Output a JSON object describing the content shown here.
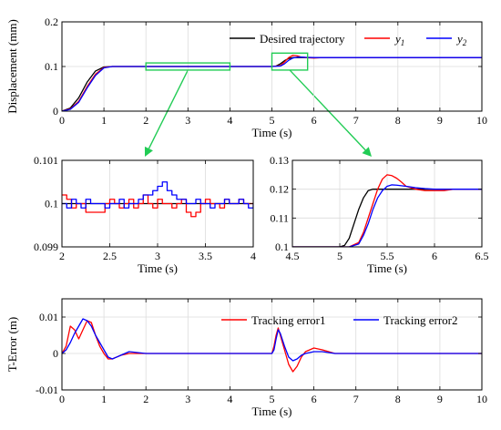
{
  "colors": {
    "desired": "#000000",
    "y1": "#ff0000",
    "y2": "#0000ff",
    "zoom": "#22cc55"
  },
  "chart_data": [
    {
      "id": "displacement",
      "type": "line",
      "ylabel": "Displacement (mm)",
      "xlabel": "Time (s)",
      "xlim": [
        0,
        10
      ],
      "ylim": [
        0,
        0.2
      ],
      "xticks": [
        0,
        1,
        2,
        3,
        4,
        5,
        6,
        7,
        8,
        9,
        10
      ],
      "xtick_labels": [
        "0",
        "1",
        "2",
        "3",
        "4",
        "5",
        "6",
        "7",
        "8",
        "9",
        "10"
      ],
      "yticks": [
        0,
        0.1,
        0.2
      ],
      "ytick_labels": [
        "0",
        "0.1",
        "0.2"
      ],
      "grid": true,
      "legend": "top-right",
      "series": [
        {
          "name": "Desired trajectory",
          "x": [
            0,
            0.2,
            0.4,
            0.6,
            0.8,
            1.0,
            1.2,
            2,
            3,
            4,
            5,
            5.1,
            5.2,
            5.3,
            5.4,
            5.5,
            5.6,
            5.8,
            6,
            7,
            8,
            9,
            10
          ],
          "y": [
            0,
            0.007,
            0.03,
            0.065,
            0.09,
            0.099,
            0.1,
            0.1,
            0.1,
            0.1,
            0.1,
            0.101,
            0.106,
            0.113,
            0.118,
            0.12,
            0.12,
            0.12,
            0.12,
            0.12,
            0.12,
            0.12,
            0.12
          ]
        },
        {
          "name": "y1",
          "legend_main": "y",
          "legend_sub": "1",
          "x": [
            0,
            0.2,
            0.4,
            0.6,
            0.8,
            1.0,
            1.2,
            2,
            3,
            4,
            5,
            5.2,
            5.3,
            5.4,
            5.5,
            5.6,
            5.7,
            5.8,
            6,
            6.2,
            6.5,
            7,
            8,
            9,
            10
          ],
          "y": [
            0,
            0.005,
            0.022,
            0.055,
            0.083,
            0.098,
            0.1,
            0.1,
            0.1,
            0.1,
            0.1,
            0.102,
            0.11,
            0.12,
            0.125,
            0.124,
            0.121,
            0.12,
            0.119,
            0.12,
            0.12,
            0.12,
            0.12,
            0.12,
            0.12
          ]
        },
        {
          "name": "y2",
          "legend_main": "y",
          "legend_sub": "2",
          "x": [
            0,
            0.2,
            0.4,
            0.6,
            0.8,
            1.0,
            1.2,
            2,
            3,
            4,
            5,
            5.2,
            5.3,
            5.4,
            5.5,
            5.6,
            5.7,
            5.8,
            6,
            6.5,
            7,
            8,
            9,
            10
          ],
          "y": [
            0,
            0.004,
            0.02,
            0.052,
            0.08,
            0.097,
            0.1,
            0.1,
            0.1,
            0.1,
            0.1,
            0.101,
            0.106,
            0.114,
            0.119,
            0.121,
            0.121,
            0.1205,
            0.12,
            0.12,
            0.12,
            0.12,
            0.12,
            0.12
          ]
        }
      ],
      "zoom_regions": [
        {
          "xlim": [
            2,
            4
          ],
          "ylim": [
            0.092,
            0.108
          ]
        },
        {
          "xlim": [
            5,
            5.85
          ],
          "ylim": [
            0.092,
            0.13
          ]
        }
      ]
    },
    {
      "id": "zoom-left",
      "type": "line",
      "xlabel": "Time (s)",
      "xlim": [
        2,
        4
      ],
      "ylim": [
        0.099,
        0.101
      ],
      "xticks": [
        2,
        2.5,
        3,
        3.5,
        4
      ],
      "xtick_labels": [
        "2",
        "2.5",
        "3",
        "3.5",
        "4"
      ],
      "yticks": [
        0.099,
        0.1,
        0.101
      ],
      "ytick_labels": [
        "0.099",
        "0.1",
        "0.101"
      ],
      "grid": true,
      "series": [
        {
          "name": "Desired trajectory",
          "x": [
            2,
            4
          ],
          "y": [
            0.1,
            0.1
          ]
        },
        {
          "name": "y1",
          "x": [
            2,
            2.05,
            2.1,
            2.15,
            2.2,
            2.25,
            2.3,
            2.35,
            2.4,
            2.45,
            2.5,
            2.55,
            2.6,
            2.65,
            2.7,
            2.75,
            2.8,
            2.85,
            2.9,
            2.95,
            3.0,
            3.05,
            3.1,
            3.15,
            3.2,
            3.25,
            3.3,
            3.35,
            3.4,
            3.45,
            3.5,
            3.55,
            3.6,
            3.65,
            3.7,
            3.75,
            3.8,
            3.85,
            3.9,
            3.95,
            4.0
          ],
          "y": [
            0.1002,
            0.1001,
            0.0999,
            0.1,
            0.1,
            0.0998,
            0.0998,
            0.0998,
            0.0998,
            0.1,
            0.1001,
            0.1,
            0.0999,
            0.1,
            0.1001,
            0.0999,
            0.1,
            0.1002,
            0.1,
            0.0999,
            0.1001,
            0.1,
            0.1,
            0.0999,
            0.1,
            0.1001,
            0.0998,
            0.0997,
            0.0998,
            0.1,
            0.1001,
            0.1,
            0.1,
            0.0999,
            0.1001,
            0.1,
            0.1,
            0.1001,
            0.1,
            0.1,
            0.1
          ]
        },
        {
          "name": "y2",
          "x": [
            2,
            2.05,
            2.1,
            2.15,
            2.2,
            2.25,
            2.3,
            2.35,
            2.4,
            2.45,
            2.5,
            2.55,
            2.6,
            2.65,
            2.7,
            2.75,
            2.8,
            2.85,
            2.9,
            2.95,
            3.0,
            3.05,
            3.1,
            3.15,
            3.2,
            3.25,
            3.3,
            3.35,
            3.4,
            3.45,
            3.5,
            3.55,
            3.6,
            3.65,
            3.7,
            3.75,
            3.8,
            3.85,
            3.9,
            3.95,
            4.0
          ],
          "y": [
            0.1,
            0.0999,
            0.1001,
            0.1,
            0.0999,
            0.1001,
            0.1,
            0.1,
            0.1,
            0.0999,
            0.1,
            0.1,
            0.1001,
            0.0999,
            0.1,
            0.1,
            0.1001,
            0.1002,
            0.1002,
            0.1003,
            0.1004,
            0.1005,
            0.1003,
            0.1002,
            0.1001,
            0.1001,
            0.1,
            0.1,
            0.1001,
            0.1,
            0.1,
            0.0999,
            0.1,
            0.1,
            0.1001,
            0.1,
            0.1,
            0.1001,
            0.1,
            0.0999,
            0.1
          ]
        }
      ]
    },
    {
      "id": "zoom-right",
      "type": "line",
      "xlabel": "Time (s)",
      "xlim": [
        4.5,
        6.5
      ],
      "ylim": [
        0.1,
        0.13
      ],
      "xticks": [
        4.5,
        5,
        5.5,
        6,
        6.5
      ],
      "xtick_labels": [
        "4.5",
        "5",
        "5.5",
        "6",
        "6.5"
      ],
      "yticks": [
        0.1,
        0.11,
        0.12,
        0.13
      ],
      "ytick_labels": [
        "0.1",
        "0.11",
        "0.12",
        "0.13"
      ],
      "grid": true,
      "series": [
        {
          "name": "Desired trajectory",
          "x": [
            4.5,
            5.0,
            5.05,
            5.1,
            5.15,
            5.2,
            5.25,
            5.3,
            5.35,
            5.4,
            6.5
          ],
          "y": [
            0.1,
            0.1,
            0.1005,
            0.103,
            0.108,
            0.113,
            0.117,
            0.1195,
            0.12,
            0.12,
            0.12
          ]
        },
        {
          "name": "y1",
          "x": [
            4.5,
            5.1,
            5.2,
            5.25,
            5.3,
            5.35,
            5.4,
            5.45,
            5.5,
            5.55,
            5.6,
            5.65,
            5.7,
            5.8,
            5.9,
            6.0,
            6.1,
            6.2,
            6.3,
            6.5
          ],
          "y": [
            0.1,
            0.1,
            0.1015,
            0.105,
            0.11,
            0.115,
            0.12,
            0.1235,
            0.125,
            0.1247,
            0.1238,
            0.1225,
            0.121,
            0.12,
            0.1195,
            0.1195,
            0.1195,
            0.12,
            0.12,
            0.12
          ]
        },
        {
          "name": "y2",
          "x": [
            4.5,
            5.1,
            5.2,
            5.25,
            5.3,
            5.35,
            5.4,
            5.45,
            5.5,
            5.55,
            5.6,
            5.7,
            5.8,
            5.9,
            6.0,
            6.2,
            6.5
          ],
          "y": [
            0.1,
            0.1,
            0.101,
            0.104,
            0.108,
            0.113,
            0.117,
            0.1195,
            0.121,
            0.1215,
            0.1214,
            0.121,
            0.1205,
            0.1202,
            0.12,
            0.12,
            0.12
          ]
        }
      ]
    },
    {
      "id": "tracking-error",
      "type": "line",
      "ylabel": "T-Error (m)",
      "xlabel": "Time (s)",
      "xlim": [
        0,
        10
      ],
      "ylim": [
        -0.01,
        0.015
      ],
      "xticks": [
        0,
        1,
        2,
        3,
        4,
        5,
        6,
        7,
        8,
        9,
        10
      ],
      "xtick_labels": [
        "0",
        "1",
        "2",
        "3",
        "4",
        "5",
        "6",
        "7",
        "8",
        "9",
        "10"
      ],
      "yticks": [
        -0.01,
        0,
        0.01
      ],
      "ytick_labels": [
        "-0.01",
        "0",
        "0.01"
      ],
      "grid": true,
      "legend": "top-right",
      "series": [
        {
          "name": "Tracking error1",
          "x": [
            0,
            0.1,
            0.2,
            0.3,
            0.4,
            0.5,
            0.6,
            0.7,
            0.8,
            0.9,
            1.0,
            1.1,
            1.2,
            1.4,
            1.6,
            2,
            3,
            4,
            5.0,
            5.05,
            5.1,
            5.15,
            5.2,
            5.3,
            5.4,
            5.5,
            5.6,
            5.7,
            5.8,
            6.0,
            6.2,
            6.5,
            7,
            8,
            9,
            10
          ],
          "y": [
            0,
            0.002,
            0.0075,
            0.0065,
            0.004,
            0.0065,
            0.009,
            0.0085,
            0.005,
            0.002,
            0,
            -0.0015,
            -0.0015,
            -0.0005,
            0,
            0,
            0,
            0,
            0,
            0.002,
            0.005,
            0.007,
            0.005,
            0.001,
            -0.003,
            -0.005,
            -0.0035,
            -0.001,
            0.0005,
            0.0015,
            0.001,
            0,
            0,
            0,
            0,
            0
          ]
        },
        {
          "name": "Tracking error2",
          "x": [
            0,
            0.1,
            0.2,
            0.3,
            0.4,
            0.5,
            0.6,
            0.7,
            0.8,
            0.9,
            1.0,
            1.1,
            1.2,
            1.4,
            1.6,
            2,
            3,
            4,
            5.0,
            5.05,
            5.1,
            5.15,
            5.2,
            5.3,
            5.4,
            5.5,
            5.6,
            5.7,
            5.8,
            6.0,
            6.2,
            6.5,
            7,
            8,
            9,
            10
          ],
          "y": [
            0,
            0.001,
            0.003,
            0.0055,
            0.0075,
            0.0095,
            0.009,
            0.0075,
            0.005,
            0.003,
            0.001,
            -0.001,
            -0.0015,
            -0.0005,
            0.0005,
            0,
            0,
            0,
            0,
            0.001,
            0.004,
            0.0065,
            0.0055,
            0.002,
            -0.001,
            -0.002,
            -0.0015,
            -0.0005,
            0,
            0.0005,
            0.0005,
            0,
            0,
            0,
            0,
            0
          ]
        }
      ]
    }
  ]
}
